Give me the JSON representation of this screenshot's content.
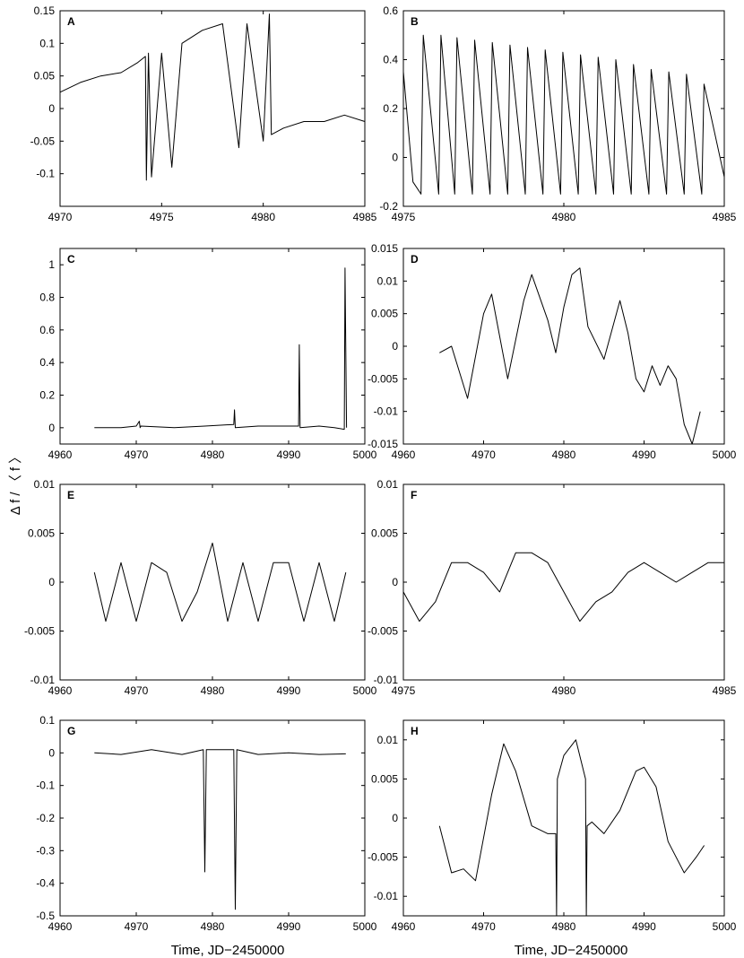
{
  "figure": {
    "ylabel": "Δ f / 〈 f 〉",
    "xlabel": "Time, JD−2450000"
  },
  "chart_data": [
    {
      "id": "A",
      "type": "line",
      "letter": "A",
      "xlim": [
        4970,
        4985
      ],
      "ylim": [
        -0.15,
        0.15
      ],
      "xticks": [
        4970,
        4975,
        4980,
        4985
      ],
      "xtick_labels": [
        "4970",
        "4975",
        "4980",
        "4985"
      ],
      "yticks": [
        -0.1,
        -0.05,
        0,
        0.05,
        0.1,
        0.15
      ],
      "ytick_labels": [
        "-0.1",
        "-0.05",
        "0",
        "0.05",
        "0.1",
        "0.15"
      ],
      "series": [
        {
          "x": [
            4970,
            4971,
            4972,
            4973,
            4973.8,
            4974.2,
            4974.25,
            4974.35,
            4974.5,
            4975,
            4975.5,
            4976,
            4977,
            4978,
            4978.8,
            4979.2,
            4980,
            4980.3,
            4980.4,
            4981,
            4982,
            4983,
            4984,
            4985
          ],
          "y": [
            0.025,
            0.04,
            0.05,
            0.055,
            0.07,
            0.08,
            -0.11,
            0.085,
            -0.105,
            0.085,
            -0.09,
            0.1,
            0.12,
            0.13,
            -0.06,
            0.13,
            -0.05,
            0.145,
            -0.04,
            -0.03,
            -0.02,
            -0.02,
            -0.01,
            -0.02
          ]
        }
      ]
    },
    {
      "id": "B",
      "type": "line",
      "letter": "B",
      "xlim": [
        4975,
        4985
      ],
      "ylim": [
        -0.2,
        0.6
      ],
      "xticks": [
        4975,
        4980,
        4985
      ],
      "xtick_labels": [
        "4975",
        "4980",
        "4985"
      ],
      "yticks": [
        -0.2,
        0,
        0.2,
        0.4,
        0.6
      ],
      "ytick_labels": [
        "-0.2",
        "0",
        "0.2",
        "0.4",
        "0.6"
      ],
      "series": [
        {
          "x": [
            4975,
            4975.3,
            4975.55,
            4975.62,
            4976.1,
            4976.17,
            4976.6,
            4976.67,
            4977.15,
            4977.22,
            4977.7,
            4977.77,
            4978.25,
            4978.32,
            4978.8,
            4978.87,
            4979.35,
            4979.42,
            4979.9,
            4979.97,
            4980.45,
            4980.52,
            4981.0,
            4981.07,
            4981.55,
            4981.62,
            4982.1,
            4982.17,
            4982.65,
            4982.72,
            4983.2,
            4983.27,
            4983.75,
            4983.82,
            4984.3,
            4984.37,
            4985
          ],
          "y": [
            0.35,
            -0.1,
            -0.15,
            0.5,
            -0.15,
            0.5,
            -0.15,
            0.49,
            -0.15,
            0.48,
            -0.15,
            0.47,
            -0.15,
            0.46,
            -0.15,
            0.45,
            -0.15,
            0.44,
            -0.15,
            0.43,
            -0.15,
            0.42,
            -0.15,
            0.41,
            -0.15,
            0.4,
            -0.15,
            0.38,
            -0.15,
            0.36,
            -0.15,
            0.35,
            -0.15,
            0.34,
            -0.15,
            0.3,
            -0.08
          ]
        }
      ]
    },
    {
      "id": "C",
      "type": "line",
      "letter": "C",
      "xlim": [
        4960,
        5000
      ],
      "ylim": [
        -0.1,
        1.1
      ],
      "xticks": [
        4960,
        4970,
        4980,
        4990,
        5000
      ],
      "xtick_labels": [
        "4960",
        "4970",
        "4980",
        "4990",
        "5000"
      ],
      "yticks": [
        0,
        0.2,
        0.4,
        0.6,
        0.8,
        1
      ],
      "ytick_labels": [
        "0",
        "0.2",
        "0.4",
        "0.6",
        "0.8",
        "1"
      ],
      "series": [
        {
          "x": [
            4964.5,
            4968,
            4970,
            4970.4,
            4970.5,
            4970.6,
            4975,
            4979,
            4982.8,
            4982.9,
            4983,
            4986,
            4991.3,
            4991.4,
            4991.5,
            4994,
            4996,
            4997.3,
            4997.4,
            4997.6
          ],
          "y": [
            0,
            0,
            0.01,
            0.04,
            0,
            0.01,
            0,
            0.01,
            0.02,
            0.11,
            0,
            0.01,
            0.01,
            0.51,
            0,
            0.01,
            0,
            -0.01,
            0.98,
            0
          ]
        }
      ]
    },
    {
      "id": "D",
      "type": "line",
      "letter": "D",
      "xlim": [
        4960,
        5000
      ],
      "ylim": [
        -0.015,
        0.015
      ],
      "xticks": [
        4960,
        4970,
        4980,
        4990,
        5000
      ],
      "xtick_labels": [
        "4960",
        "4970",
        "4980",
        "4990",
        "5000"
      ],
      "yticks": [
        -0.015,
        -0.01,
        -0.005,
        0,
        0.005,
        0.01,
        0.015
      ],
      "ytick_labels": [
        "-0.015",
        "-0.01",
        "-0.005",
        "0",
        "0.005",
        "0.01",
        "0.015"
      ],
      "series": [
        {
          "x": [
            4964.5,
            4966,
            4968,
            4970,
            4971,
            4973,
            4975,
            4976,
            4978,
            4979,
            4980,
            4981,
            4982,
            4983,
            4985,
            4987,
            4988,
            4989,
            4990,
            4991,
            4992,
            4993,
            4994,
            4995,
            4996,
            4997
          ],
          "y": [
            -0.001,
            0,
            -0.008,
            0.005,
            0.008,
            -0.005,
            0.007,
            0.011,
            0.004,
            -0.001,
            0.006,
            0.011,
            0.012,
            0.003,
            -0.002,
            0.007,
            0.002,
            -0.005,
            -0.007,
            -0.003,
            -0.006,
            -0.003,
            -0.005,
            -0.012,
            -0.015,
            -0.01
          ]
        }
      ]
    },
    {
      "id": "E",
      "type": "line",
      "letter": "E",
      "xlim": [
        4960,
        5000
      ],
      "ylim": [
        -0.01,
        0.01
      ],
      "xticks": [
        4960,
        4970,
        4980,
        4990,
        5000
      ],
      "xtick_labels": [
        "4960",
        "4970",
        "4980",
        "4990",
        "5000"
      ],
      "yticks": [
        -0.01,
        -0.005,
        0,
        0.005,
        0.01
      ],
      "ytick_labels": [
        "-0.01",
        "-0.005",
        "0",
        "0.005",
        "0.01"
      ],
      "series": [
        {
          "x": [
            4964.5,
            4966,
            4968,
            4970,
            4972,
            4974,
            4976,
            4978,
            4980,
            4982,
            4984,
            4986,
            4988,
            4990,
            4992,
            4994,
            4996,
            4997.5
          ],
          "y": [
            0.001,
            -0.004,
            0.002,
            -0.004,
            0.002,
            0.001,
            -0.004,
            -0.001,
            0.004,
            -0.004,
            0.002,
            -0.004,
            0.002,
            0.002,
            -0.004,
            0.002,
            -0.004,
            0.001
          ]
        }
      ]
    },
    {
      "id": "F",
      "type": "line",
      "letter": "F",
      "xlim": [
        4975,
        4985
      ],
      "ylim": [
        -0.01,
        0.01
      ],
      "xticks": [
        4975,
        4980,
        4985
      ],
      "xtick_labels": [
        "4975",
        "4980",
        "4985"
      ],
      "yticks": [
        -0.01,
        -0.005,
        0,
        0.005,
        0.01
      ],
      "ytick_labels": [
        "-0.01",
        "-0.005",
        "0",
        "0.005",
        "0.01"
      ],
      "series": [
        {
          "x": [
            4975,
            4975.5,
            4976,
            4976.5,
            4977,
            4977.5,
            4978,
            4978.5,
            4979,
            4979.5,
            4980,
            4980.5,
            4981,
            4981.5,
            4982,
            4982.5,
            4983,
            4983.5,
            4984,
            4984.5,
            4985
          ],
          "y": [
            -0.001,
            -0.004,
            -0.002,
            0.002,
            0.002,
            0.001,
            -0.001,
            0.003,
            0.003,
            0.002,
            -0.001,
            -0.004,
            -0.002,
            -0.001,
            0.001,
            0.002,
            0.001,
            0,
            0.001,
            0.002,
            0.002
          ]
        }
      ]
    },
    {
      "id": "G",
      "type": "line",
      "letter": "G",
      "xlim": [
        4960,
        5000
      ],
      "ylim": [
        -0.5,
        0.1
      ],
      "xticks": [
        4960,
        4970,
        4980,
        4990,
        5000
      ],
      "xtick_labels": [
        "4960",
        "4970",
        "4980",
        "4990",
        "5000"
      ],
      "yticks": [
        -0.5,
        -0.4,
        -0.3,
        -0.2,
        -0.1,
        0,
        0.1
      ],
      "ytick_labels": [
        "-0.5",
        "-0.4",
        "-0.3",
        "-0.2",
        "-0.1",
        "0",
        "0.1"
      ],
      "series": [
        {
          "x": [
            4964.5,
            4968,
            4972,
            4976,
            4978.8,
            4979,
            4979.2,
            4981,
            4982.8,
            4983,
            4983.2,
            4986,
            4990,
            4994,
            4997.5
          ],
          "y": [
            0,
            -0.005,
            0.01,
            -0.005,
            0.01,
            -0.365,
            0.01,
            0.01,
            0.01,
            -0.48,
            0.01,
            -0.005,
            0,
            -0.005,
            -0.003
          ]
        }
      ]
    },
    {
      "id": "H",
      "type": "line",
      "letter": "H",
      "xlim": [
        4960,
        5000
      ],
      "ylim": [
        -0.0125,
        0.0125
      ],
      "xticks": [
        4960,
        4970,
        4980,
        4990,
        5000
      ],
      "xtick_labels": [
        "4960",
        "4970",
        "4980",
        "4990",
        "5000"
      ],
      "yticks": [
        -0.01,
        -0.005,
        0,
        0.005,
        0.01
      ],
      "ytick_labels": [
        "-0.01",
        "-0.005",
        "0",
        "0.005",
        "0.01"
      ],
      "series": [
        {
          "x": [
            4964.5,
            4966,
            4967.5,
            4969,
            4971,
            4972.5,
            4974,
            4976,
            4978,
            4979,
            4979.1,
            4979.2,
            4980,
            4981.5,
            4982.7,
            4982.8,
            4982.9,
            4983.5,
            4985,
            4987,
            4989,
            4990,
            4991.5,
            4993,
            4995,
            4996.5,
            4997.5
          ],
          "y": [
            -0.001,
            -0.007,
            -0.0065,
            -0.008,
            0.003,
            0.0095,
            0.006,
            -0.001,
            -0.002,
            -0.002,
            -0.0125,
            0.005,
            0.008,
            0.01,
            0.005,
            -0.0125,
            -0.001,
            -0.0005,
            -0.002,
            0.001,
            0.006,
            0.0065,
            0.004,
            -0.003,
            -0.007,
            -0.005,
            -0.0035
          ]
        }
      ]
    }
  ]
}
